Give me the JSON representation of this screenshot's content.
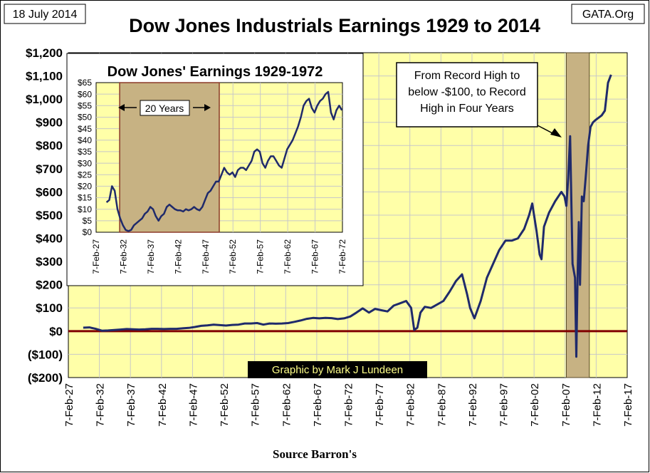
{
  "header": {
    "date": "18 July 2014",
    "source_tag": "GATA.Org",
    "title": "Dow Jones Industrials Earnings 1929 to 2014"
  },
  "footer": {
    "source": "Source Barron's",
    "credit": "Graphic by Mark J Lundeen"
  },
  "colors": {
    "plot_bg": "#ffffa8",
    "grid": "#c8c8c8",
    "line": "#1f2a6b",
    "zero_line": "#800000",
    "shade": "#c7b283",
    "inset_border": "#000000"
  },
  "annotation": {
    "text": "From Record High to below -$100, to Record High in Four Years",
    "lines": [
      "From Record High to",
      "below -$100, to Record",
      "High in Four Years"
    ]
  },
  "chart_data": [
    {
      "type": "line",
      "title": "Dow Jones Industrials Earnings 1929 to 2014",
      "xlabel": "Source Barron's",
      "ylabel": "",
      "x_range": [
        1927.1,
        2017.1
      ],
      "ylim": [
        -200,
        1200
      ],
      "y_ticks": [
        -200,
        -100,
        0,
        100,
        200,
        300,
        400,
        500,
        600,
        700,
        800,
        900,
        1000,
        1100,
        1200
      ],
      "y_tick_labels": [
        "($200)",
        "($100)",
        "$0",
        "$100",
        "$200",
        "$300",
        "$400",
        "$500",
        "$600",
        "$700",
        "$800",
        "$900",
        "$1,000",
        "$1,100",
        "$1,200"
      ],
      "x_ticks": [
        1927.1,
        1932.1,
        1937.1,
        1942.1,
        1947.1,
        1952.1,
        1957.1,
        1962.1,
        1967.1,
        1972.1,
        1977.1,
        1982.1,
        1987.1,
        1992.1,
        1997.1,
        2002.1,
        2007.1,
        2012.1,
        2017.1
      ],
      "x_tick_labels": [
        "7-Feb-27",
        "7-Feb-32",
        "7-Feb-37",
        "7-Feb-42",
        "7-Feb-47",
        "7-Feb-52",
        "7-Feb-57",
        "7-Feb-62",
        "7-Feb-67",
        "7-Feb-72",
        "7-Feb-77",
        "7-Feb-82",
        "7-Feb-87",
        "7-Feb-92",
        "7-Feb-97",
        "7-Feb-02",
        "7-Feb-07",
        "7-Feb-12",
        "7-Feb-17"
      ],
      "shaded_region": [
        2007.3,
        2011.0
      ],
      "reference_line": 0,
      "series": [
        {
          "name": "Dow Jones Industrials Earnings",
          "x": [
            1929.5,
            1930.5,
            1931.5,
            1932.5,
            1933.5,
            1934.5,
            1935.5,
            1936.5,
            1937.5,
            1938.5,
            1939.5,
            1940.5,
            1941.5,
            1942.5,
            1943.5,
            1944.5,
            1945.5,
            1946.5,
            1947.5,
            1948.5,
            1949.5,
            1950.5,
            1951.5,
            1952.5,
            1953.5,
            1954.5,
            1955.5,
            1956.5,
            1957.5,
            1958.5,
            1959.5,
            1960.5,
            1961.5,
            1962.5,
            1963.5,
            1964.5,
            1965.5,
            1966.5,
            1967.5,
            1968.5,
            1969.5,
            1970.5,
            1971.5,
            1972.5,
            1973.5,
            1974.5,
            1975.5,
            1976.5,
            1977.5,
            1978.5,
            1979.5,
            1980.5,
            1981.5,
            1982.3,
            1982.8,
            1983.3,
            1983.8,
            1984.5,
            1985.5,
            1986.5,
            1987.5,
            1988.5,
            1989.5,
            1990.5,
            1991.3,
            1991.8,
            1992.5,
            1993.5,
            1994.5,
            1995.5,
            1996.5,
            1997.5,
            1998.5,
            1999.5,
            2000.5,
            2001.3,
            2001.8,
            2002.5,
            2003.0,
            2003.3,
            2003.7,
            2004.5,
            2005.5,
            2006.5,
            2007.0,
            2007.3,
            2007.6,
            2007.9,
            2008.3,
            2008.7,
            2008.9,
            2009.1,
            2009.3,
            2009.5,
            2009.8,
            2010.1,
            2010.4,
            2010.8,
            2011.2,
            2011.6,
            2012.0,
            2012.5,
            2013.0,
            2013.5,
            2014.0,
            2014.5
          ],
          "y": [
            15,
            16,
            10,
            2,
            3,
            5,
            7,
            9,
            8,
            7,
            8,
            10,
            10,
            9,
            10,
            10,
            12,
            14,
            18,
            23,
            25,
            28,
            26,
            24,
            27,
            28,
            33,
            33,
            35,
            28,
            33,
            32,
            33,
            35,
            40,
            46,
            53,
            57,
            55,
            57,
            56,
            52,
            55,
            63,
            80,
            98,
            80,
            96,
            90,
            85,
            110,
            120,
            130,
            100,
            5,
            15,
            80,
            105,
            100,
            115,
            130,
            170,
            215,
            245,
            160,
            100,
            55,
            130,
            230,
            290,
            350,
            390,
            390,
            400,
            440,
            500,
            550,
            430,
            330,
            310,
            450,
            510,
            560,
            600,
            580,
            540,
            660,
            840,
            290,
            230,
            -110,
            220,
            470,
            200,
            580,
            560,
            660,
            800,
            880,
            900,
            910,
            920,
            930,
            950,
            1070,
            1105
          ]
        }
      ]
    },
    {
      "type": "line",
      "title": "Dow Jones' Earnings 1929-1972",
      "xlabel": "",
      "ylabel": "",
      "x_range": [
        1927.1,
        1972.1
      ],
      "ylim": [
        0,
        65
      ],
      "y_ticks": [
        0,
        5,
        10,
        15,
        20,
        25,
        30,
        35,
        40,
        45,
        50,
        55,
        60,
        65
      ],
      "y_tick_labels": [
        "$0",
        "$5",
        "$10",
        "$15",
        "$20",
        "$25",
        "$30",
        "$35",
        "$40",
        "$45",
        "$50",
        "$55",
        "$60",
        "$65"
      ],
      "x_ticks": [
        1927.1,
        1932.1,
        1937.1,
        1942.1,
        1947.1,
        1952.1,
        1957.1,
        1962.1,
        1967.1,
        1972.1
      ],
      "x_tick_labels": [
        "7-Feb-27",
        "7-Feb-32",
        "7-Feb-37",
        "7-Feb-42",
        "7-Feb-47",
        "7-Feb-52",
        "7-Feb-57",
        "7-Feb-62",
        "7-Feb-67",
        "7-Feb-72"
      ],
      "shaded_region": [
        1931.4,
        1949.6
      ],
      "shaded_label": "20 Years",
      "series": [
        {
          "name": "Dow Jones' Earnings",
          "x": [
            1929.0,
            1929.5,
            1930.0,
            1930.5,
            1931.0,
            1931.5,
            1932.0,
            1932.5,
            1933.0,
            1933.5,
            1934.0,
            1934.5,
            1935.0,
            1935.5,
            1936.0,
            1936.5,
            1937.0,
            1937.5,
            1938.0,
            1938.5,
            1939.0,
            1939.5,
            1940.0,
            1940.5,
            1941.0,
            1941.5,
            1942.0,
            1942.5,
            1943.0,
            1943.5,
            1944.0,
            1944.5,
            1945.0,
            1945.5,
            1946.0,
            1946.5,
            1947.0,
            1947.5,
            1948.0,
            1948.5,
            1949.0,
            1949.5,
            1950.0,
            1950.5,
            1951.0,
            1951.5,
            1952.0,
            1952.5,
            1953.0,
            1953.5,
            1954.0,
            1954.5,
            1955.0,
            1955.5,
            1956.0,
            1956.5,
            1957.0,
            1957.5,
            1958.0,
            1958.5,
            1959.0,
            1959.5,
            1960.0,
            1960.5,
            1961.0,
            1961.5,
            1962.0,
            1962.5,
            1963.0,
            1963.5,
            1964.0,
            1964.5,
            1965.0,
            1965.5,
            1966.0,
            1966.5,
            1967.0,
            1967.5,
            1968.0,
            1968.5,
            1969.0,
            1969.5,
            1970.0,
            1970.5,
            1971.0,
            1971.5,
            1972.0
          ],
          "y": [
            13,
            14,
            20,
            18,
            10,
            6,
            3,
            1,
            0.5,
            1,
            3,
            4,
            5,
            6,
            8,
            9,
            11,
            10,
            7,
            5,
            7,
            8,
            11,
            12,
            11,
            10,
            9.5,
            9.5,
            9,
            10,
            9.5,
            10,
            11,
            10,
            9.5,
            11,
            14,
            17,
            18,
            20,
            22,
            22,
            25,
            28,
            26,
            25,
            26,
            24,
            27,
            28,
            28,
            27,
            29,
            31,
            35,
            36,
            35,
            30,
            28,
            31,
            33,
            33,
            31,
            29,
            28,
            32,
            36,
            38,
            40,
            43,
            46,
            50,
            55,
            57,
            58,
            54,
            52,
            55,
            57,
            58,
            60,
            61,
            52,
            49,
            53,
            55,
            53
          ]
        }
      ]
    }
  ]
}
